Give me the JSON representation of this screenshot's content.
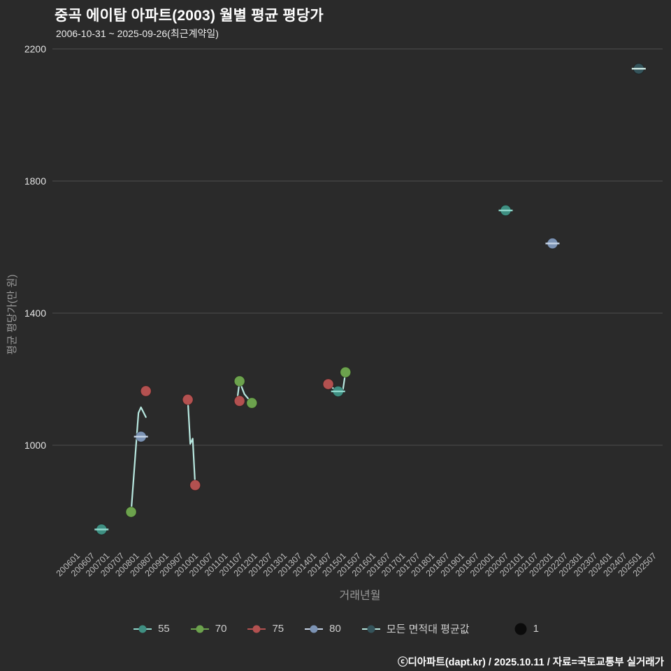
{
  "title": "중곡 에이탑 아파트(2003) 월별 평균 평당가",
  "subtitle": "2006-10-31 ~ 2025-09-26(최근계약일)",
  "footer": "ⓒ디아파트(dapt.kr) / 2025.10.11 / 자료=국토교통부 실거래가",
  "chart_data": {
    "type": "scatter",
    "title": "중곡 에이탑 아파트(2003) 월별 평균 평당가",
    "xlabel": "거래년월",
    "ylabel": "평균 평당가(만 원)",
    "ylim": [
      800,
      2260
    ],
    "y_ticks": [
      2200,
      1800,
      1400,
      1000
    ],
    "x_ticks": [
      "200601",
      "200607",
      "200701",
      "200707",
      "200801",
      "200807",
      "200901",
      "200907",
      "201001",
      "201007",
      "201101",
      "201107",
      "201201",
      "201207",
      "201301",
      "201307",
      "201401",
      "201407",
      "201501",
      "201507",
      "201601",
      "201607",
      "201701",
      "201707",
      "201801",
      "201807",
      "201901",
      "201907",
      "202001",
      "202007",
      "202101",
      "202107",
      "202201",
      "202207",
      "202301",
      "202307",
      "202401",
      "202407",
      "202501",
      "202507"
    ],
    "grid": "horizontal",
    "legend_position": "bottom",
    "background": "#2a2a2a",
    "series": [
      {
        "name": "55",
        "color": "#3f8f82",
        "dash_color": "#8fd8cc",
        "points": [
          [
            "200611",
            745
          ],
          [
            "201411",
            1163
          ],
          [
            "202007",
            1711
          ]
        ]
      },
      {
        "name": "70",
        "color": "#6ca24d",
        "points": [
          [
            "200711",
            798
          ],
          [
            "201107",
            1194
          ],
          [
            "201112",
            1128
          ],
          [
            "201502",
            1221
          ]
        ]
      },
      {
        "name": "75",
        "color": "#b35150",
        "points": [
          [
            "200805",
            1164
          ],
          [
            "200910",
            1138
          ],
          [
            "201001",
            879
          ],
          [
            "201107",
            1134
          ],
          [
            "201407",
            1185
          ]
        ]
      },
      {
        "name": "80",
        "color": "#7c93b4",
        "dash_color": "#c6d4e6",
        "points": [
          [
            "200803",
            1026
          ],
          [
            "202202",
            1611
          ]
        ]
      },
      {
        "name": "모든 면적대 평균값",
        "color": "#35545b",
        "dash_color": "#cfeae4",
        "line_color": "#b8e8e0",
        "points": [
          [
            "202501",
            2140
          ]
        ],
        "segments": [
          [
            [
              "200711",
              798
            ],
            [
              "200802",
              1098
            ],
            [
              "200803",
              1115
            ],
            [
              "200805",
              1085
            ]
          ],
          [
            [
              "200910",
              1138
            ],
            [
              "200911",
              1004
            ],
            [
              "200912",
              1020
            ],
            [
              "201001",
              879
            ]
          ],
          [
            [
              "201106",
              1135
            ],
            [
              "201107",
              1193
            ],
            [
              "201109",
              1155
            ],
            [
              "201112",
              1128
            ]
          ],
          [
            [
              "201407",
              1185
            ],
            [
              "201411",
              1160
            ],
            [
              "201501",
              1170
            ],
            [
              "201502",
              1221
            ]
          ]
        ]
      }
    ],
    "size_legend": {
      "label": "1",
      "color": "#0b0b0b"
    }
  }
}
